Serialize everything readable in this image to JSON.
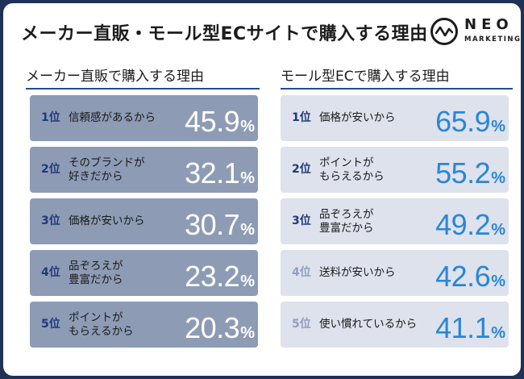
{
  "title": "メーカー直販・モール型ECサイトで購入する理由",
  "logo": {
    "name": "NEO",
    "sub": "MARKETING"
  },
  "chart_data": [
    {
      "type": "table",
      "title": "メーカー直販で購入する理由",
      "unit": "%",
      "rows": [
        {
          "rank": "1位",
          "reason": "信頼感があるから",
          "value": "45.9"
        },
        {
          "rank": "2位",
          "reason": "そのブランドが\n好きだから",
          "value": "32.1"
        },
        {
          "rank": "3位",
          "reason": "価格が安いから",
          "value": "30.7"
        },
        {
          "rank": "4位",
          "reason": "品ぞろえが\n豊富だから",
          "value": "23.2"
        },
        {
          "rank": "5位",
          "reason": "ポイントが\nもらえるから",
          "value": "20.3"
        }
      ]
    },
    {
      "type": "table",
      "title": "モール型ECで購入する理由",
      "unit": "%",
      "rows": [
        {
          "rank": "1位",
          "reason": "価格が安いから",
          "value": "65.9"
        },
        {
          "rank": "2位",
          "reason": "ポイントが\nもらえるから",
          "value": "55.2"
        },
        {
          "rank": "3位",
          "reason": "品ぞろえが\n豊富だから",
          "value": "49.2"
        },
        {
          "rank": "4位",
          "reason": "送料が安いから",
          "value": "42.6"
        },
        {
          "rank": "5位",
          "reason": "使い慣れているから",
          "value": "41.1"
        }
      ]
    }
  ],
  "colors": {
    "frame": "#1f3155",
    "left_row_bg": "#8e9bb5",
    "right_row_bg": "#dde2ec",
    "rank_text": "#1f3a7a",
    "rank_text_faded": "#8f9fc2",
    "right_value": "#2b86d2"
  }
}
